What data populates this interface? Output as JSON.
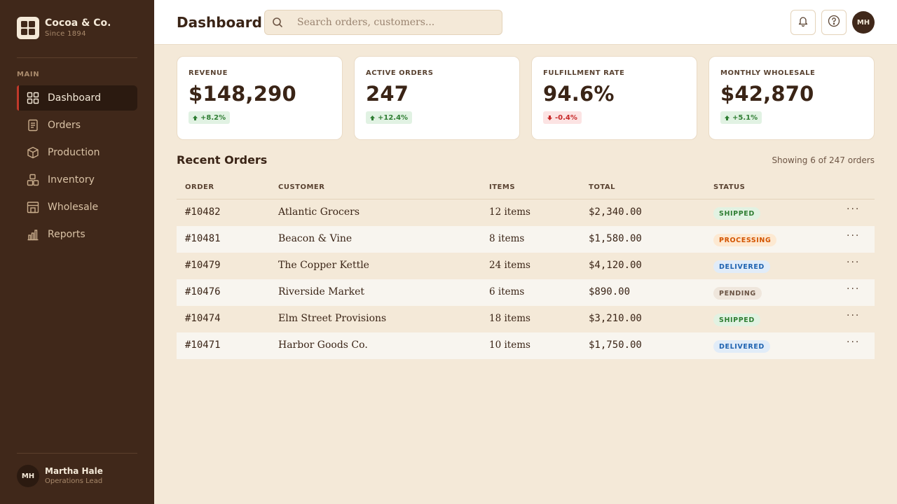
{
  "brand": {
    "name": "Cocoa & Co.",
    "tagline": "Since 1894"
  },
  "sidebar": {
    "section_label": "MAIN",
    "items": [
      {
        "label": "Dashboard",
        "icon": "grid-icon",
        "active": true
      },
      {
        "label": "Orders",
        "icon": "document-icon",
        "active": false
      },
      {
        "label": "Production",
        "icon": "box-icon",
        "active": false
      },
      {
        "label": "Inventory",
        "icon": "boxes-icon",
        "active": false
      },
      {
        "label": "Wholesale",
        "icon": "store-icon",
        "active": false
      },
      {
        "label": "Reports",
        "icon": "bar-chart-icon",
        "active": false
      }
    ],
    "user": {
      "initials": "MH",
      "name": "Martha Hale",
      "role": "Operations Lead"
    }
  },
  "header": {
    "title": "Dashboard",
    "search_placeholder": "Search orders, customers...",
    "avatar_initials": "MH"
  },
  "kpis": [
    {
      "label": "REVENUE",
      "value": "$148,290",
      "delta": "+8.2%",
      "trend": "up"
    },
    {
      "label": "ACTIVE ORDERS",
      "value": "247",
      "delta": "+12.4%",
      "trend": "up"
    },
    {
      "label": "FULFILLMENT RATE",
      "value": "94.6%",
      "delta": "-0.4%",
      "trend": "down"
    },
    {
      "label": "MONTHLY WHOLESALE",
      "value": "$42,870",
      "delta": "+5.1%",
      "trend": "up"
    }
  ],
  "orders": {
    "title": "Recent Orders",
    "count_text": "Showing 6 of 247 orders",
    "columns": {
      "order": "ORDER",
      "customer": "CUSTOMER",
      "items": "ITEMS",
      "total": "TOTAL",
      "status": "STATUS"
    },
    "more_label": "···",
    "rows": [
      {
        "order": "#10482",
        "customer": "Atlantic Grocers",
        "items": "12 items",
        "total": "$2,340.00",
        "status": "SHIPPED"
      },
      {
        "order": "#10481",
        "customer": "Beacon & Vine",
        "items": "8 items",
        "total": "$1,580.00",
        "status": "PROCESSING"
      },
      {
        "order": "#10479",
        "customer": "The Copper Kettle",
        "items": "24 items",
        "total": "$4,120.00",
        "status": "DELIVERED"
      },
      {
        "order": "#10476",
        "customer": "Riverside Market",
        "items": "6 items",
        "total": "$890.00",
        "status": "PENDING"
      },
      {
        "order": "#10474",
        "customer": "Elm Street Provisions",
        "items": "18 items",
        "total": "$3,210.00",
        "status": "SHIPPED"
      },
      {
        "order": "#10471",
        "customer": "Harbor Goods Co.",
        "items": "10 items",
        "total": "$1,750.00",
        "status": "DELIVERED"
      }
    ]
  },
  "colors": {
    "sidebar_bg": "#40281a",
    "page_bg": "#f4e9d8",
    "accent_active": "#c0392b",
    "up": "#2e7d32",
    "down": "#c62828"
  }
}
